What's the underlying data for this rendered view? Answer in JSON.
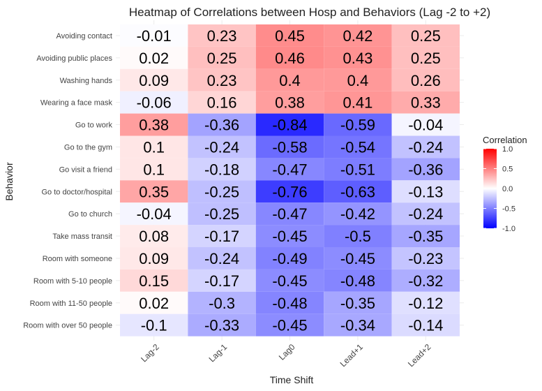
{
  "chart_data": {
    "type": "heatmap",
    "title": "Heatmap of Correlations between Hosp and Behaviors (Lag -2 to +2)",
    "xlabel": "Time Shift",
    "ylabel": "Behavior",
    "columns": [
      "Lag-2",
      "Lag-1",
      "Lag0",
      "Lead+1",
      "Lead+2"
    ],
    "rows": [
      "Avoiding contact",
      "Avoiding public places",
      "Washing hands",
      "Wearing a face mask",
      "Go to work",
      "Go to the gym",
      "Go visit a friend",
      "Go to doctor/hospital",
      "Go to church",
      "Take mass transit",
      "Room with someone",
      "Room with 5-10 people",
      "Room with 11-50 people",
      "Room with over 50 people"
    ],
    "values": [
      [
        -0.01,
        0.23,
        0.45,
        0.42,
        0.25
      ],
      [
        0.02,
        0.25,
        0.46,
        0.43,
        0.25
      ],
      [
        0.09,
        0.23,
        0.4,
        0.4,
        0.26
      ],
      [
        -0.06,
        0.16,
        0.38,
        0.41,
        0.33
      ],
      [
        0.38,
        -0.36,
        -0.84,
        -0.59,
        -0.04
      ],
      [
        0.1,
        -0.24,
        -0.58,
        -0.54,
        -0.24
      ],
      [
        0.1,
        -0.18,
        -0.47,
        -0.51,
        -0.36
      ],
      [
        0.35,
        -0.25,
        -0.76,
        -0.63,
        -0.13
      ],
      [
        -0.04,
        -0.25,
        -0.47,
        -0.42,
        -0.24
      ],
      [
        0.08,
        -0.17,
        -0.45,
        -0.5,
        -0.35
      ],
      [
        0.09,
        -0.24,
        -0.49,
        -0.45,
        -0.23
      ],
      [
        0.15,
        -0.17,
        -0.45,
        -0.48,
        -0.32
      ],
      [
        0.02,
        -0.3,
        -0.48,
        -0.35,
        -0.12
      ],
      [
        -0.1,
        -0.33,
        -0.45,
        -0.34,
        -0.14
      ]
    ],
    "legend": {
      "title": "Correlation",
      "ticks": [
        "1.0",
        "0.5",
        "0.0",
        "-0.5",
        "-1.0"
      ],
      "range": [
        -1,
        1
      ],
      "colors": {
        "low": "#0000ff",
        "mid": "#ffffff",
        "high": "#ff0000"
      },
      "placement": "right"
    }
  }
}
